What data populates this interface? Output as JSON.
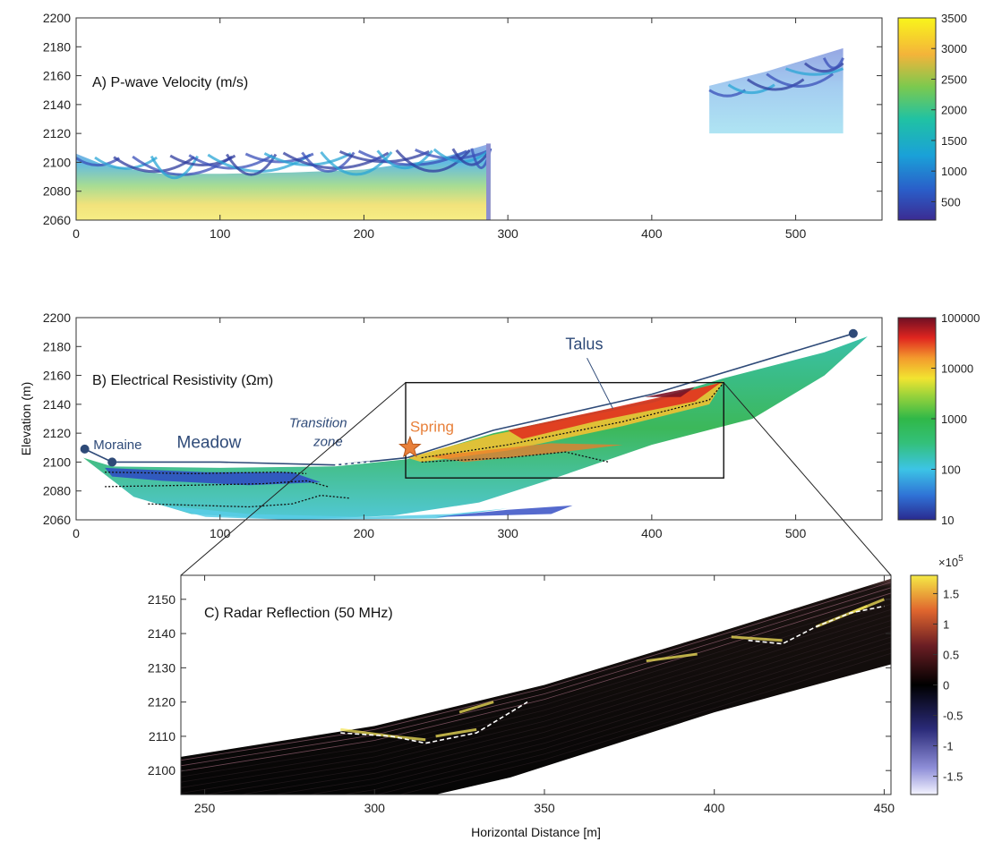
{
  "chart_data": [
    {
      "type": "heatmap",
      "title": "A) P-wave Velocity (m/s)",
      "xlabel": "",
      "ylabel": "",
      "xlim": [
        0,
        560
      ],
      "ylim": [
        2060,
        2200
      ],
      "x_ticks": [
        0,
        100,
        200,
        300,
        400,
        500
      ],
      "y_ticks": [
        2060,
        2080,
        2100,
        2120,
        2140,
        2160,
        2180,
        2200
      ],
      "colorbar": {
        "range": [
          200,
          3500
        ],
        "ticks": [
          500,
          1000,
          1500,
          2000,
          2500,
          3000,
          3500
        ]
      },
      "sections": [
        {
          "x": [
            0,
            288
          ],
          "top": [
            [
              0,
              2106
            ],
            [
              20,
              2098
            ],
            [
              60,
              2092
            ],
            [
              100,
              2092
            ],
            [
              150,
              2093
            ],
            [
              200,
              2095
            ],
            [
              250,
              2102
            ],
            [
              288,
              2113
            ]
          ],
          "bottom": 2060
        },
        {
          "x": [
            440,
            533
          ],
          "top": [
            [
              440,
              2153
            ],
            [
              480,
              2163
            ],
            [
              533,
              2179
            ]
          ],
          "bottom": 2120
        }
      ]
    },
    {
      "type": "heatmap",
      "title": "B) Electrical Resistivity (Ωm)",
      "xlabel": "",
      "ylabel": "Elevation (m)",
      "xlim": [
        0,
        560
      ],
      "ylim": [
        2060,
        2200
      ],
      "x_ticks": [
        0,
        100,
        200,
        300,
        400,
        500
      ],
      "y_ticks": [
        2060,
        2080,
        2100,
        2120,
        2140,
        2160,
        2180,
        2200
      ],
      "colorbar": {
        "scale": "log",
        "range": [
          10,
          100000
        ],
        "ticks": [
          "10",
          "100",
          "1000",
          "10000",
          "100000"
        ]
      },
      "annotations": [
        {
          "text": "Moraine",
          "x": 12,
          "y": 2109
        },
        {
          "text": "Meadow",
          "x": 70,
          "y": 2110
        },
        {
          "text": "Transition",
          "x": 148,
          "y": 2124
        },
        {
          "text": "zone",
          "x": 165,
          "y": 2111
        },
        {
          "text": "Spring",
          "x": 232,
          "y": 2121
        },
        {
          "text": "Talus",
          "x": 340,
          "y": 2178
        }
      ],
      "surface_line": [
        [
          6,
          2109
        ],
        [
          25,
          2100
        ],
        [
          100,
          2100
        ],
        [
          180,
          2098
        ],
        [
          230,
          2103
        ],
        [
          290,
          2122
        ],
        [
          400,
          2147
        ],
        [
          540,
          2189
        ]
      ],
      "zoom_box": {
        "x": [
          229,
          450
        ],
        "y": [
          2089,
          2155
        ]
      },
      "spring_marker": {
        "x": 232,
        "y": 2110
      }
    },
    {
      "type": "heatmap",
      "title": "C) Radar Reflection (50 MHz)",
      "xlabel": "Horizontal Distance [m]",
      "ylabel": "",
      "xlim": [
        243,
        452
      ],
      "ylim": [
        2093,
        2157
      ],
      "x_ticks": [
        250,
        300,
        350,
        400,
        450
      ],
      "y_ticks": [
        2100,
        2110,
        2120,
        2130,
        2140,
        2150
      ],
      "colorbar": {
        "range": [
          -1.8,
          1.8
        ],
        "ticks": [
          "1.5",
          "1",
          "0.5",
          "0",
          "-0.5",
          "-1",
          "-1.5"
        ],
        "exponent_label": "×10",
        "exponent": "5"
      },
      "reflector_lines": [
        [
          [
            290,
            2111
          ],
          [
            305,
            2110
          ],
          [
            315,
            2108
          ],
          [
            330,
            2111
          ],
          [
            345,
            2120
          ]
        ],
        [
          [
            410,
            2138
          ],
          [
            420,
            2137
          ],
          [
            430,
            2142
          ],
          [
            440,
            2146
          ],
          [
            450,
            2148
          ]
        ]
      ]
    }
  ]
}
